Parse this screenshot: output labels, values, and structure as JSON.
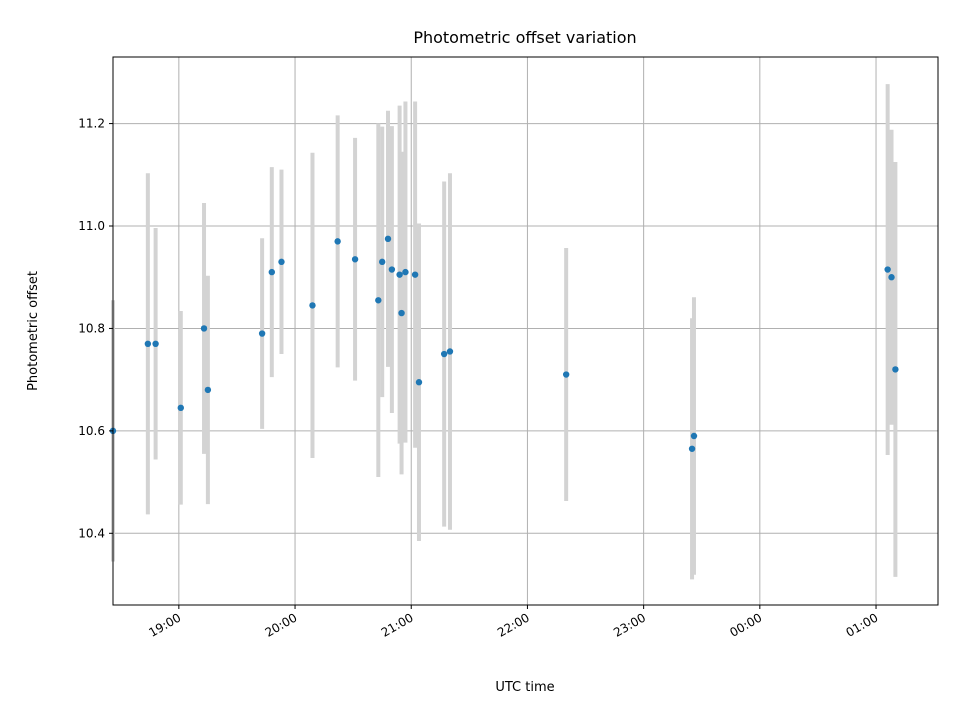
{
  "chart_data": {
    "type": "scatter",
    "title": "Photometric offset variation",
    "xlabel": "UTC time",
    "ylabel": "Photometric offset",
    "x_axis_type": "time",
    "xlim": [
      "18:26",
      "01:32"
    ],
    "ylim": [
      10.26,
      11.33
    ],
    "x_ticks": [
      "19:00",
      "20:00",
      "21:00",
      "22:00",
      "23:00",
      "00:00",
      "01:00"
    ],
    "y_ticks": [
      10.4,
      10.6,
      10.8,
      11.0,
      11.2
    ],
    "grid": true,
    "legend": "none",
    "x_tick_rotation": 30,
    "point_color": "#1f77b4",
    "errorbar_color": "#d3d3d3",
    "series": [
      {
        "points": [
          {
            "t": "18:26",
            "y": 10.6,
            "err": 0.255
          },
          {
            "t": "18:44",
            "y": 10.77,
            "err": 0.333
          },
          {
            "t": "18:48",
            "y": 10.77,
            "err": 0.226
          },
          {
            "t": "19:01",
            "y": 10.645,
            "err": 0.189
          },
          {
            "t": "19:13",
            "y": 10.8,
            "err": 0.245
          },
          {
            "t": "19:15",
            "y": 10.68,
            "err": 0.223
          },
          {
            "t": "19:43",
            "y": 10.79,
            "err": 0.186
          },
          {
            "t": "19:48",
            "y": 10.91,
            "err": 0.205
          },
          {
            "t": "19:53",
            "y": 10.93,
            "err": 0.18
          },
          {
            "t": "20:09",
            "y": 10.845,
            "err": 0.298
          },
          {
            "t": "20:22",
            "y": 10.97,
            "err": 0.246
          },
          {
            "t": "20:31",
            "y": 10.935,
            "err": 0.237
          },
          {
            "t": "20:43",
            "y": 10.855,
            "err": 0.345
          },
          {
            "t": "20:45",
            "y": 10.93,
            "err": 0.264
          },
          {
            "t": "20:48",
            "y": 10.975,
            "err": 0.25
          },
          {
            "t": "20:50",
            "y": 10.915,
            "err": 0.28
          },
          {
            "t": "20:54",
            "y": 10.905,
            "err": 0.33
          },
          {
            "t": "20:55",
            "y": 10.83,
            "err": 0.315
          },
          {
            "t": "20:57",
            "y": 10.91,
            "err": 0.333
          },
          {
            "t": "21:02",
            "y": 10.905,
            "err": 0.338
          },
          {
            "t": "21:04",
            "y": 10.695,
            "err": 0.31
          },
          {
            "t": "21:17",
            "y": 10.75,
            "err": 0.337
          },
          {
            "t": "21:20",
            "y": 10.755,
            "err": 0.348
          },
          {
            "t": "22:20",
            "y": 10.71,
            "err": 0.247
          },
          {
            "t": "23:25",
            "y": 10.565,
            "err": 0.255
          },
          {
            "t": "23:26",
            "y": 10.59,
            "err": 0.271
          },
          {
            "t": "01:06",
            "y": 10.915,
            "err": 0.362
          },
          {
            "t": "01:08",
            "y": 10.9,
            "err": 0.288
          },
          {
            "t": "01:10",
            "y": 10.72,
            "err": 0.405
          }
        ]
      }
    ]
  }
}
